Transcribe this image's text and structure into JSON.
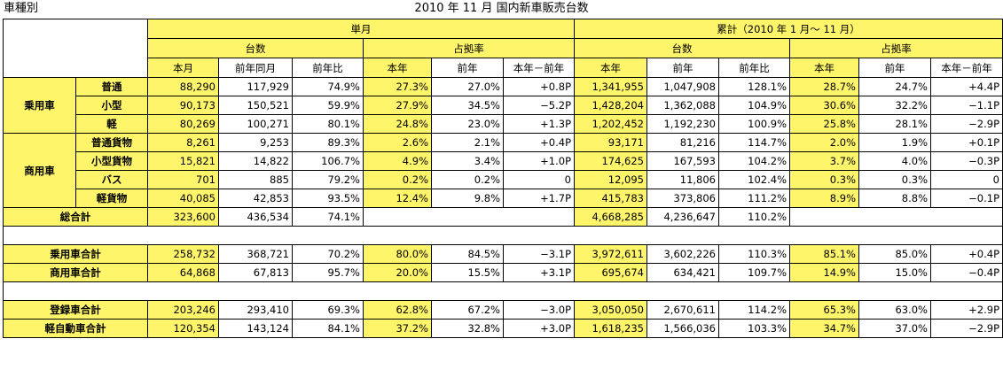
{
  "corner_label": "車種別",
  "title": "2010 年 11 月  国内新車販売台数",
  "headers": {
    "monthly": "単月",
    "cumulative": "累計（2010 年 1 月～ 11 月）",
    "units": "台数",
    "share": "占拠率",
    "this_month": "本月",
    "same_month_last_year": "前年同月",
    "yoy": "前年比",
    "this_year": "本年",
    "last_year": "前年",
    "diff": "本年－前年"
  },
  "groups": {
    "passenger": "乗用車",
    "commercial": "商用車"
  },
  "rows": [
    {
      "label": "普通",
      "m_units": "88,290",
      "m_prev": "117,929",
      "m_yoy": "74.9%",
      "m_share": "27.3%",
      "m_share_prev": "27.0%",
      "m_diff": "+0.8P",
      "c_units": "1,341,955",
      "c_prev": "1,047,908",
      "c_yoy": "128.1%",
      "c_share": "28.7%",
      "c_share_prev": "24.7%",
      "c_diff": "+4.4P"
    },
    {
      "label": "小型",
      "m_units": "90,173",
      "m_prev": "150,521",
      "m_yoy": "59.9%",
      "m_share": "27.9%",
      "m_share_prev": "34.5%",
      "m_diff": "−5.2P",
      "c_units": "1,428,204",
      "c_prev": "1,362,088",
      "c_yoy": "104.9%",
      "c_share": "30.6%",
      "c_share_prev": "32.2%",
      "c_diff": "−1.1P"
    },
    {
      "label": "軽",
      "m_units": "80,269",
      "m_prev": "100,271",
      "m_yoy": "80.1%",
      "m_share": "24.8%",
      "m_share_prev": "23.0%",
      "m_diff": "+1.3P",
      "c_units": "1,202,452",
      "c_prev": "1,192,230",
      "c_yoy": "100.9%",
      "c_share": "25.8%",
      "c_share_prev": "28.1%",
      "c_diff": "−2.9P"
    },
    {
      "label": "普通貨物",
      "m_units": "8,261",
      "m_prev": "9,253",
      "m_yoy": "89.3%",
      "m_share": "2.6%",
      "m_share_prev": "2.1%",
      "m_diff": "+0.4P",
      "c_units": "93,171",
      "c_prev": "81,216",
      "c_yoy": "114.7%",
      "c_share": "2.0%",
      "c_share_prev": "1.9%",
      "c_diff": "+0.1P"
    },
    {
      "label": "小型貨物",
      "m_units": "15,821",
      "m_prev": "14,822",
      "m_yoy": "106.7%",
      "m_share": "4.9%",
      "m_share_prev": "3.4%",
      "m_diff": "+1.0P",
      "c_units": "174,625",
      "c_prev": "167,593",
      "c_yoy": "104.2%",
      "c_share": "3.7%",
      "c_share_prev": "4.0%",
      "c_diff": "−0.3P"
    },
    {
      "label": "バス",
      "m_units": "701",
      "m_prev": "885",
      "m_yoy": "79.2%",
      "m_share": "0.2%",
      "m_share_prev": "0.2%",
      "m_diff": "0",
      "c_units": "12,095",
      "c_prev": "11,806",
      "c_yoy": "102.4%",
      "c_share": "0.3%",
      "c_share_prev": "0.3%",
      "c_diff": "0"
    },
    {
      "label": "軽貨物",
      "m_units": "40,085",
      "m_prev": "42,853",
      "m_yoy": "93.5%",
      "m_share": "12.4%",
      "m_share_prev": "9.8%",
      "m_diff": "+1.7P",
      "c_units": "415,783",
      "c_prev": "373,806",
      "c_yoy": "111.2%",
      "c_share": "8.9%",
      "c_share_prev": "8.8%",
      "c_diff": "−0.1P"
    }
  ],
  "total": {
    "label": "総合計",
    "m_units": "323,600",
    "m_prev": "436,534",
    "m_yoy": "74.1%",
    "c_units": "4,668,285",
    "c_prev": "4,236,647",
    "c_yoy": "110.2%"
  },
  "subtotals": [
    {
      "label": "乗用車合計",
      "m_units": "258,732",
      "m_prev": "368,721",
      "m_yoy": "70.2%",
      "m_share": "80.0%",
      "m_share_prev": "84.5%",
      "m_diff": "−3.1P",
      "c_units": "3,972,611",
      "c_prev": "3,602,226",
      "c_yoy": "110.3%",
      "c_share": "85.1%",
      "c_share_prev": "85.0%",
      "c_diff": "+0.4P"
    },
    {
      "label": "商用車合計",
      "m_units": "64,868",
      "m_prev": "67,813",
      "m_yoy": "95.7%",
      "m_share": "20.0%",
      "m_share_prev": "15.5%",
      "m_diff": "+3.1P",
      "c_units": "695,674",
      "c_prev": "634,421",
      "c_yoy": "109.7%",
      "c_share": "14.9%",
      "c_share_prev": "15.0%",
      "c_diff": "−0.4P"
    },
    {
      "label": "登録車合計",
      "m_units": "203,246",
      "m_prev": "293,410",
      "m_yoy": "69.3%",
      "m_share": "62.8%",
      "m_share_prev": "67.2%",
      "m_diff": "−3.0P",
      "c_units": "3,050,050",
      "c_prev": "2,670,611",
      "c_yoy": "114.2%",
      "c_share": "65.3%",
      "c_share_prev": "63.0%",
      "c_diff": "+2.9P"
    },
    {
      "label": "軽自動車合計",
      "m_units": "120,354",
      "m_prev": "143,124",
      "m_yoy": "84.1%",
      "m_share": "37.2%",
      "m_share_prev": "32.8%",
      "m_diff": "+3.0P",
      "c_units": "1,618,235",
      "c_prev": "1,566,036",
      "c_yoy": "103.3%",
      "c_share": "34.7%",
      "c_share_prev": "37.0%",
      "c_diff": "−2.9P"
    }
  ],
  "colors": {
    "highlight": "#FFF56A",
    "border": "#000000"
  }
}
